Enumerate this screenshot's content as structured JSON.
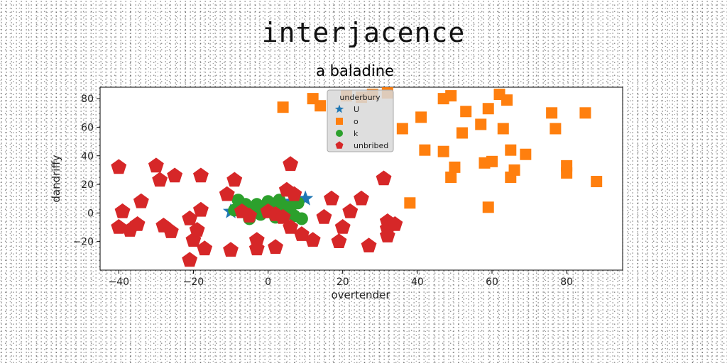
{
  "page_title": "interjacence",
  "chart_data": {
    "type": "scatter",
    "title": "a baladine",
    "xlabel": "overtender",
    "ylabel": "dandriffy",
    "xlim": [
      -45,
      95
    ],
    "ylim": [
      -40,
      88
    ],
    "xticks": [
      -40,
      -20,
      0,
      20,
      40,
      60,
      80
    ],
    "yticks": [
      -20,
      0,
      20,
      40,
      60,
      80
    ],
    "grid": false,
    "legend": {
      "title": "underbury",
      "placement": "top-center"
    },
    "series": [
      {
        "name": "U",
        "marker": "star",
        "color": "#1f77b4",
        "points": [
          [
            -10,
            1
          ],
          [
            -7,
            2
          ],
          [
            1,
            5
          ],
          [
            3,
            6
          ],
          [
            8,
            9
          ],
          [
            10,
            10
          ],
          [
            6,
            8
          ]
        ]
      },
      {
        "name": "o",
        "marker": "square",
        "color": "#ff7f0e",
        "points": [
          [
            4,
            74
          ],
          [
            12,
            80
          ],
          [
            14,
            75
          ],
          [
            21,
            82
          ],
          [
            25,
            81
          ],
          [
            28,
            83
          ],
          [
            32,
            84
          ],
          [
            36,
            59
          ],
          [
            38,
            7
          ],
          [
            41,
            67
          ],
          [
            42,
            44
          ],
          [
            47,
            43
          ],
          [
            47,
            80
          ],
          [
            49,
            82
          ],
          [
            49,
            25
          ],
          [
            50,
            32
          ],
          [
            52,
            56
          ],
          [
            53,
            71
          ],
          [
            57,
            62
          ],
          [
            58,
            35
          ],
          [
            59,
            4
          ],
          [
            60,
            36
          ],
          [
            59,
            73
          ],
          [
            62,
            83
          ],
          [
            63,
            59
          ],
          [
            64,
            79
          ],
          [
            65,
            25
          ],
          [
            65,
            44
          ],
          [
            66,
            30
          ],
          [
            69,
            41
          ],
          [
            76,
            70
          ],
          [
            77,
            59
          ],
          [
            80,
            33
          ],
          [
            80,
            28
          ],
          [
            85,
            70
          ],
          [
            88,
            22
          ]
        ]
      },
      {
        "name": "k",
        "marker": "circle",
        "color": "#2ca02c",
        "points": [
          [
            -8,
            9
          ],
          [
            -7,
            3
          ],
          [
            -5,
            -4
          ],
          [
            -4,
            1
          ],
          [
            -3,
            6
          ],
          [
            -2,
            -1
          ],
          [
            -1,
            4
          ],
          [
            0,
            8
          ],
          [
            1,
            2
          ],
          [
            2,
            -3
          ],
          [
            3,
            9
          ],
          [
            4,
            5
          ],
          [
            5,
            0
          ],
          [
            6,
            4
          ],
          [
            7,
            -2
          ],
          [
            8,
            7
          ],
          [
            9,
            -4
          ],
          [
            -6,
            6
          ],
          [
            2,
            5
          ],
          [
            -9,
            2
          ],
          [
            4,
            -1
          ]
        ]
      },
      {
        "name": "unbribed",
        "marker": "pentagon",
        "color": "#d62728",
        "points": [
          [
            -40,
            32
          ],
          [
            -39,
            1
          ],
          [
            -40,
            -10
          ],
          [
            -37,
            -12
          ],
          [
            -35,
            -8
          ],
          [
            -34,
            8
          ],
          [
            -30,
            33
          ],
          [
            -29,
            23
          ],
          [
            -28,
            -9
          ],
          [
            -26,
            -13
          ],
          [
            -25,
            26
          ],
          [
            -21,
            -33
          ],
          [
            -21,
            -4
          ],
          [
            -20,
            -19
          ],
          [
            -19,
            -12
          ],
          [
            -18,
            26
          ],
          [
            -18,
            2
          ],
          [
            -17,
            -25
          ],
          [
            -11,
            13
          ],
          [
            -10,
            -26
          ],
          [
            -9,
            23
          ],
          [
            -7,
            1
          ],
          [
            -5,
            -2
          ],
          [
            -3,
            -19
          ],
          [
            -3,
            -25
          ],
          [
            0,
            1
          ],
          [
            2,
            -1
          ],
          [
            2,
            -24
          ],
          [
            4,
            -3
          ],
          [
            5,
            16
          ],
          [
            6,
            34
          ],
          [
            6,
            -10
          ],
          [
            7,
            13
          ],
          [
            9,
            -15
          ],
          [
            12,
            -19
          ],
          [
            15,
            -3
          ],
          [
            17,
            10
          ],
          [
            19,
            -20
          ],
          [
            20,
            -10
          ],
          [
            22,
            1
          ],
          [
            25,
            10
          ],
          [
            27,
            -23
          ],
          [
            31,
            24
          ],
          [
            32,
            -6
          ],
          [
            32,
            -11
          ],
          [
            32,
            -16
          ],
          [
            34,
            -8
          ]
        ]
      }
    ]
  }
}
